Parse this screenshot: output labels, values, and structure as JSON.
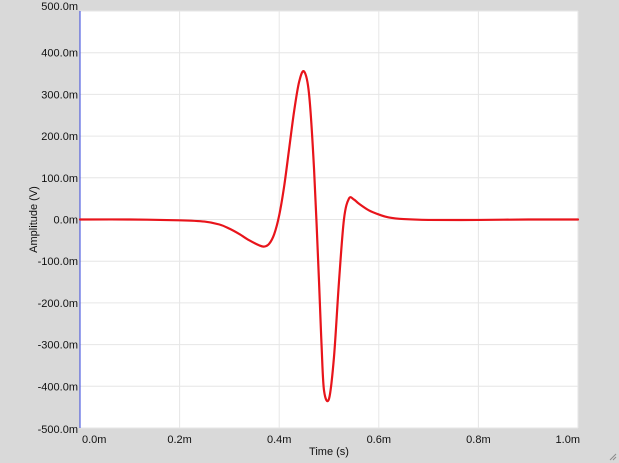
{
  "chart_data": {
    "type": "line",
    "title": "",
    "xlabel": "Time (s)",
    "ylabel": "Amplitude (V)",
    "xlim": [
      0,
      1.0
    ],
    "ylim": [
      -500,
      500
    ],
    "x_unit": "ms",
    "y_unit": "mV",
    "x_ticks": [
      {
        "value": 0.0,
        "label": "0.0m"
      },
      {
        "value": 0.2,
        "label": "0.2m"
      },
      {
        "value": 0.4,
        "label": "0.4m"
      },
      {
        "value": 0.6,
        "label": "0.6m"
      },
      {
        "value": 0.8,
        "label": "0.8m"
      },
      {
        "value": 1.0,
        "label": "1.0m"
      }
    ],
    "y_ticks": [
      {
        "value": 500,
        "label": "500.0m"
      },
      {
        "value": 400,
        "label": "400.0m"
      },
      {
        "value": 300,
        "label": "300.0m"
      },
      {
        "value": 200,
        "label": "200.0m"
      },
      {
        "value": 100,
        "label": "100.0m"
      },
      {
        "value": 0,
        "label": "0.0m"
      },
      {
        "value": -100,
        "label": "-100.0m"
      },
      {
        "value": -200,
        "label": "-200.0m"
      },
      {
        "value": -300,
        "label": "-300.0m"
      },
      {
        "value": -400,
        "label": "-400.0m"
      },
      {
        "value": -500,
        "label": "-500.0m"
      }
    ],
    "grid": true,
    "legend": "none",
    "series": [
      {
        "color": "#e8141b",
        "x": [
          0.0,
          0.1,
          0.2,
          0.25,
          0.28,
          0.3,
          0.32,
          0.34,
          0.36,
          0.37,
          0.38,
          0.39,
          0.4,
          0.41,
          0.42,
          0.43,
          0.44,
          0.45,
          0.46,
          0.47,
          0.48,
          0.485,
          0.49,
          0.5,
          0.51,
          0.52,
          0.53,
          0.54,
          0.55,
          0.56,
          0.58,
          0.6,
          0.62,
          0.65,
          0.7,
          0.8,
          0.9,
          1.0
        ],
        "y": [
          0,
          0,
          -2,
          -5,
          -12,
          -22,
          -35,
          -50,
          -62,
          -65,
          -58,
          -35,
          10,
          80,
          170,
          260,
          330,
          355,
          300,
          120,
          -150,
          -300,
          -410,
          -430,
          -330,
          -150,
          0,
          50,
          48,
          38,
          22,
          12,
          5,
          1,
          -1,
          -1,
          0,
          0
        ]
      }
    ]
  },
  "colors": {
    "background": "#d9d9d9",
    "plot_area": "#ffffff",
    "grid": "#e6e6e6",
    "left_axis": "#3344dd",
    "series": "#e8141b"
  }
}
